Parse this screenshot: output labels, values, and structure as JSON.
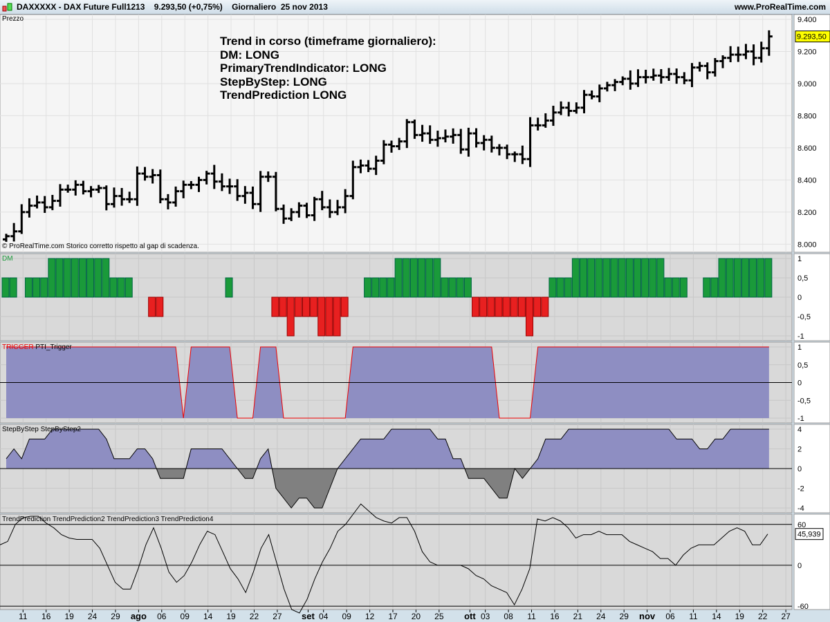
{
  "header": {
    "symbol": "DAXXXXX - DAX Future Full1213",
    "price": "9.293,50 (+0,75%)",
    "timeframe": "Giornaliero  25 nov 2013",
    "site": "www.ProRealTime.com"
  },
  "price_panel": {
    "label": "Prezzo",
    "footer": "© ProRealTime.com  Storico corretto rispetto al gap di scadenza.",
    "last_label": "9.293,50",
    "annotation": [
      "Trend in corso (timeframe giornaliero):",
      "DM: LONG",
      "PrimaryTrendIndicator: LONG",
      "StepByStep: LONG",
      "TrendPrediction LONG"
    ]
  },
  "colors": {
    "up": "#1a9a3a",
    "down": "#e82020",
    "fill": "#8e8ec2",
    "neg": "#808080"
  },
  "chart_data": [
    {
      "type": "ohlc",
      "title": "Prezzo",
      "ylim": [
        7950,
        9430
      ],
      "yticks": [
        8000,
        8200,
        8400,
        8600,
        8800,
        9000,
        9200,
        9400
      ],
      "ytick_labels": [
        "8.000",
        "8.200",
        "8.400",
        "8.600",
        "8.800",
        "9.000",
        "9.200",
        "9.400"
      ],
      "close": [
        8050,
        8080,
        8200,
        8240,
        8260,
        8230,
        8270,
        8340,
        8340,
        8370,
        8330,
        8340,
        8350,
        8250,
        8300,
        8280,
        8280,
        8440,
        8420,
        8430,
        8280,
        8260,
        8330,
        8370,
        8370,
        8400,
        8440,
        8390,
        8360,
        8360,
        8300,
        8320,
        8250,
        8420,
        8420,
        8220,
        8160,
        8200,
        8240,
        8180,
        8280,
        8230,
        8200,
        8230,
        8300,
        8480,
        8490,
        8470,
        8520,
        8620,
        8610,
        8640,
        8760,
        8680,
        8690,
        8650,
        8660,
        8670,
        8680,
        8590,
        8690,
        8630,
        8650,
        8600,
        8600,
        8560,
        8560,
        8530,
        8740,
        8740,
        8770,
        8820,
        8850,
        8830,
        8850,
        8930,
        8920,
        8970,
        8990,
        9010,
        9030,
        9000,
        9040,
        9040,
        9050,
        9040,
        9060,
        9040,
        9020,
        9100,
        9110,
        9070,
        9140,
        9160,
        9180,
        9180,
        9200,
        9160,
        9220,
        9293.5
      ]
    },
    {
      "type": "bar",
      "title": "DM",
      "ylim": [
        -1,
        1
      ],
      "yticks": [
        1,
        0.5,
        0,
        -0.5,
        -1
      ],
      "ytick_labels": [
        "1",
        "0,5",
        "0",
        "-0,5",
        "-1"
      ],
      "values": [
        0.5,
        0.5,
        0,
        0.5,
        0.5,
        0.5,
        1,
        1,
        1,
        1,
        1,
        1,
        1,
        1,
        0.5,
        0.5,
        0.5,
        0,
        0,
        -0.5,
        -0.5,
        0,
        0,
        0,
        0,
        0,
        0,
        0,
        0,
        0.5,
        0,
        0,
        0,
        0,
        0,
        -0.5,
        -0.5,
        -1,
        -0.5,
        -0.5,
        -0.5,
        -1,
        -1,
        -1,
        -0.5,
        0,
        0,
        0.5,
        0.5,
        0.5,
        0.5,
        1,
        1,
        1,
        1,
        1,
        1,
        0.5,
        0.5,
        0.5,
        0.5,
        -0.5,
        -0.5,
        -0.5,
        -0.5,
        -0.5,
        -0.5,
        -0.5,
        -1,
        -0.5,
        -0.5,
        0.5,
        0.5,
        0.5,
        1,
        1,
        1,
        1,
        1,
        1,
        1,
        1,
        1,
        1,
        1,
        1,
        0.5,
        0.5,
        0.5,
        0,
        0,
        0.5,
        0.5,
        1,
        1,
        1,
        1,
        1,
        1,
        1
      ]
    },
    {
      "type": "area",
      "title": "TRIGGER",
      "series_name": "PTI_Trigger",
      "ylim": [
        -1,
        1
      ],
      "yticks": [
        1,
        0.5,
        0,
        -0.5,
        -1
      ],
      "ytick_labels": [
        "1",
        "0,5",
        "0",
        "-0,5",
        "-1"
      ],
      "values": [
        1,
        1,
        1,
        1,
        1,
        1,
        1,
        1,
        1,
        1,
        1,
        1,
        1,
        1,
        1,
        1,
        1,
        1,
        1,
        1,
        1,
        1,
        1,
        -1,
        1,
        1,
        1,
        1,
        1,
        1,
        -1,
        -1,
        -1,
        1,
        1,
        1,
        -1,
        -1,
        -1,
        -1,
        -1,
        -1,
        -1,
        -1,
        -1,
        1,
        1,
        1,
        1,
        1,
        1,
        1,
        1,
        1,
        1,
        1,
        1,
        1,
        1,
        1,
        1,
        1,
        1,
        1,
        -1,
        -1,
        -1,
        -1,
        -1,
        1,
        1,
        1,
        1,
        1,
        1,
        1,
        1,
        1,
        1,
        1,
        1,
        1,
        1,
        1,
        1,
        1,
        1,
        1,
        1,
        1,
        1,
        1,
        1,
        1,
        1,
        1,
        1,
        1,
        1,
        1
      ]
    },
    {
      "type": "area",
      "title": "StepByStep",
      "series_name": "StepByStep2",
      "ylim": [
        -4,
        4
      ],
      "yticks": [
        4,
        2,
        0,
        -2,
        -4
      ],
      "ytick_labels": [
        "4",
        "2",
        "0",
        "-2",
        "-4"
      ],
      "values": [
        1,
        2,
        1,
        3,
        3,
        3,
        4,
        4,
        4,
        4,
        4,
        4,
        4,
        3,
        1,
        1,
        1,
        2,
        2,
        1,
        -1,
        -1,
        -1,
        -1,
        2,
        2,
        2,
        2,
        2,
        1,
        0,
        -1,
        -1,
        1,
        2,
        -2,
        -3,
        -4,
        -3,
        -3,
        -4,
        -4,
        -2,
        0,
        1,
        2,
        3,
        3,
        3,
        3,
        4,
        4,
        4,
        4,
        4,
        4,
        3,
        3,
        1,
        1,
        -1,
        -1,
        -1,
        -2,
        -3,
        -3,
        0,
        -1,
        0,
        1,
        3,
        3,
        3,
        4,
        4,
        4,
        4,
        4,
        4,
        4,
        4,
        4,
        4,
        4,
        4,
        4,
        4,
        3,
        3,
        3,
        2,
        2,
        3,
        3,
        4,
        4,
        4,
        4,
        4,
        4
      ]
    },
    {
      "type": "line",
      "title": "TrendPrediction",
      "series": [
        "TrendPrediction2",
        "TrendPrediction3",
        "TrendPrediction4"
      ],
      "ylim": [
        -65,
        75
      ],
      "hlines": [
        60,
        0,
        -60
      ],
      "yticks": [
        60,
        0,
        -60
      ],
      "ytick_labels": [
        "60",
        "0",
        "-60"
      ],
      "last_label": "45,939",
      "values": [
        30,
        35,
        60,
        70,
        72,
        72,
        62,
        55,
        45,
        40,
        38,
        38,
        38,
        25,
        0,
        -25,
        -35,
        -35,
        -5,
        30,
        55,
        25,
        -10,
        -25,
        -15,
        5,
        30,
        50,
        45,
        20,
        -5,
        -20,
        -40,
        -10,
        25,
        45,
        5,
        -35,
        -65,
        -70,
        -50,
        -20,
        5,
        25,
        50,
        60,
        75,
        90,
        80,
        70,
        65,
        62,
        70,
        70,
        50,
        20,
        5,
        0,
        0,
        0,
        0,
        -5,
        -15,
        -20,
        -30,
        -35,
        -40,
        -58,
        -35,
        -5,
        68,
        65,
        70,
        65,
        55,
        40,
        45,
        45,
        50,
        45,
        45,
        45,
        35,
        30,
        25,
        20,
        10,
        10,
        0,
        15,
        25,
        30,
        30,
        30,
        40,
        50,
        55,
        50,
        30,
        30,
        45.9
      ]
    }
  ],
  "x_axis": {
    "labels": [
      "11",
      "16",
      "19",
      "24",
      "29",
      "ago",
      "06",
      "09",
      "14",
      "19",
      "22",
      "27",
      "set",
      "04",
      "09",
      "12",
      "17",
      "20",
      "25",
      "ott",
      "03",
      "08",
      "11",
      "16",
      "21",
      "24",
      "29",
      "nov",
      "06",
      "11",
      "14",
      "19",
      "22",
      "27"
    ],
    "positions_bar_index": [
      2,
      5,
      8,
      11,
      14,
      17,
      20,
      23,
      26,
      29,
      32,
      35,
      39,
      41,
      44,
      47,
      50,
      53,
      56,
      60,
      62,
      65,
      68,
      71,
      74,
      77,
      80,
      83,
      86,
      89,
      92,
      95,
      98,
      101
    ]
  }
}
